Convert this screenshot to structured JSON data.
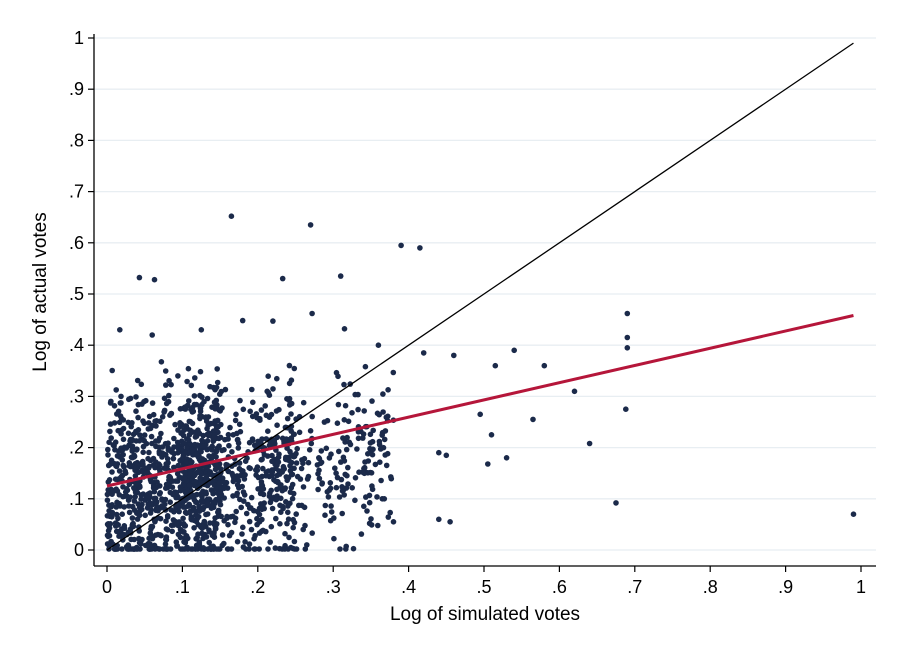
{
  "chart_data": {
    "type": "scatter",
    "title": "",
    "xlabel": "Log of simulated votes",
    "ylabel": "Log of actual votes",
    "xlim": [
      0,
      1
    ],
    "ylim": [
      0,
      1
    ],
    "x_ticks": [
      0,
      0.1,
      0.2,
      0.3,
      0.4,
      0.5,
      0.6,
      0.7,
      0.8,
      0.9,
      1
    ],
    "x_tick_labels": [
      "0",
      ".1",
      ".2",
      ".3",
      ".4",
      ".5",
      ".6",
      ".7",
      ".8",
      ".9",
      "1"
    ],
    "y_ticks": [
      0,
      0.1,
      0.2,
      0.3,
      0.4,
      0.5,
      0.6,
      0.7,
      0.8,
      0.9,
      1
    ],
    "y_tick_labels": [
      "0",
      ".1",
      ".2",
      ".3",
      ".4",
      ".5",
      ".6",
      ".7",
      ".8",
      ".9",
      "1"
    ],
    "grid": "horizontal",
    "legend": "none",
    "colors": {
      "points": "#1b2a4a",
      "fit_line": "#b5163a",
      "identity_line": "#000000",
      "grid": "#e8eef2",
      "background": "#ffffff"
    },
    "fit_line": {
      "x": [
        0,
        0.99
      ],
      "y": [
        0.125,
        0.458
      ]
    },
    "identity_line": {
      "x": [
        0,
        0.99
      ],
      "y": [
        0,
        0.99
      ]
    },
    "notable_points": [
      {
        "x": 0.165,
        "y": 0.652
      },
      {
        "x": 0.27,
        "y": 0.635
      },
      {
        "x": 0.39,
        "y": 0.595
      },
      {
        "x": 0.415,
        "y": 0.59
      },
      {
        "x": 0.31,
        "y": 0.535
      },
      {
        "x": 0.043,
        "y": 0.532
      },
      {
        "x": 0.063,
        "y": 0.528
      },
      {
        "x": 0.233,
        "y": 0.53
      },
      {
        "x": 0.69,
        "y": 0.462
      },
      {
        "x": 0.69,
        "y": 0.415
      },
      {
        "x": 0.69,
        "y": 0.395
      },
      {
        "x": 0.688,
        "y": 0.275
      },
      {
        "x": 0.64,
        "y": 0.208
      },
      {
        "x": 0.675,
        "y": 0.092
      },
      {
        "x": 0.99,
        "y": 0.07
      },
      {
        "x": 0.62,
        "y": 0.31
      },
      {
        "x": 0.58,
        "y": 0.36
      },
      {
        "x": 0.565,
        "y": 0.255
      },
      {
        "x": 0.54,
        "y": 0.39
      },
      {
        "x": 0.515,
        "y": 0.36
      },
      {
        "x": 0.51,
        "y": 0.225
      },
      {
        "x": 0.505,
        "y": 0.168
      },
      {
        "x": 0.495,
        "y": 0.265
      },
      {
        "x": 0.53,
        "y": 0.18
      },
      {
        "x": 0.44,
        "y": 0.06
      },
      {
        "x": 0.455,
        "y": 0.055
      },
      {
        "x": 0.45,
        "y": 0.185
      },
      {
        "x": 0.44,
        "y": 0.19
      },
      {
        "x": 0.38,
        "y": 0.055
      },
      {
        "x": 0.265,
        "y": 0.01
      },
      {
        "x": 0.06,
        "y": 0.005
      },
      {
        "x": 0.017,
        "y": 0.43
      },
      {
        "x": 0.06,
        "y": 0.42
      },
      {
        "x": 0.125,
        "y": 0.43
      },
      {
        "x": 0.18,
        "y": 0.448
      },
      {
        "x": 0.22,
        "y": 0.447
      },
      {
        "x": 0.272,
        "y": 0.462
      },
      {
        "x": 0.315,
        "y": 0.432
      },
      {
        "x": 0.36,
        "y": 0.4
      },
      {
        "x": 0.42,
        "y": 0.385
      },
      {
        "x": 0.46,
        "y": 0.38
      }
    ],
    "cloud": {
      "approx_point_count": 1500,
      "x_range": [
        0,
        0.38
      ],
      "y_range": [
        0,
        0.45
      ],
      "densest_region": {
        "x": [
          0,
          0.15
        ],
        "y": [
          0,
          0.25
        ]
      }
    }
  }
}
